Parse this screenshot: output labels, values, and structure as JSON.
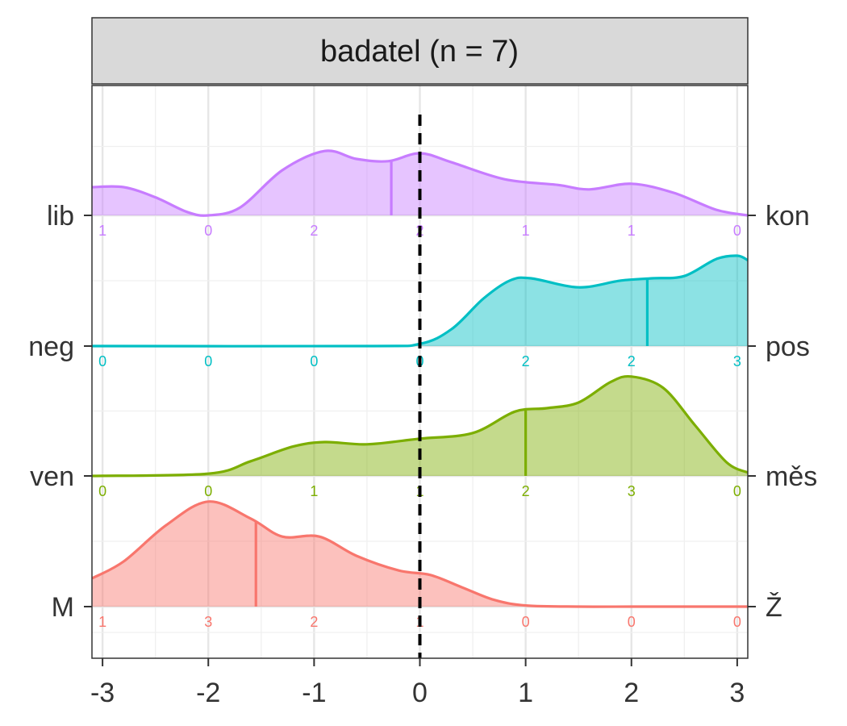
{
  "chart_data": {
    "type": "ridgeline-density",
    "facet_title": "badatel (n = 7)",
    "x_ticks": [
      -3,
      -2,
      -1,
      0,
      1,
      2,
      3
    ],
    "x_tick_labels": [
      "-3",
      "-2",
      "-1",
      "0",
      "1",
      "2",
      "3"
    ],
    "xlim": [
      -3.1,
      3.1
    ],
    "reference_line_x": 0,
    "grid": true,
    "series": [
      {
        "left_label": "M",
        "right_label": "Ž",
        "color": "#F8766D",
        "median": -1.55,
        "counts": [
          1,
          3,
          2,
          1,
          0,
          0,
          0
        ],
        "density": [
          [
            -3.1,
            0.25
          ],
          [
            -2.8,
            0.4
          ],
          [
            -2.4,
            0.72
          ],
          [
            -2.0,
            0.93
          ],
          [
            -1.6,
            0.78
          ],
          [
            -1.3,
            0.62
          ],
          [
            -0.95,
            0.62
          ],
          [
            -0.6,
            0.45
          ],
          [
            -0.2,
            0.32
          ],
          [
            0.1,
            0.28
          ],
          [
            0.4,
            0.17
          ],
          [
            0.7,
            0.06
          ],
          [
            1.0,
            0.01
          ],
          [
            1.5,
            0.0
          ],
          [
            2.0,
            0.0
          ],
          [
            3.1,
            0.0
          ]
        ]
      },
      {
        "left_label": "ven",
        "right_label": "měs",
        "color": "#7CAE00",
        "median": 1.0,
        "counts": [
          0,
          0,
          1,
          1,
          2,
          3,
          0
        ],
        "density": [
          [
            -3.1,
            0.0
          ],
          [
            -2.0,
            0.02
          ],
          [
            -1.6,
            0.13
          ],
          [
            -1.2,
            0.26
          ],
          [
            -0.9,
            0.3
          ],
          [
            -0.5,
            0.28
          ],
          [
            0.0,
            0.33
          ],
          [
            0.5,
            0.38
          ],
          [
            0.9,
            0.57
          ],
          [
            1.2,
            0.6
          ],
          [
            1.5,
            0.65
          ],
          [
            1.8,
            0.83
          ],
          [
            2.0,
            0.88
          ],
          [
            2.3,
            0.78
          ],
          [
            2.6,
            0.45
          ],
          [
            2.9,
            0.12
          ],
          [
            3.1,
            0.03
          ]
        ]
      },
      {
        "left_label": "neg",
        "right_label": "pos",
        "color": "#00BFC4",
        "median": 2.15,
        "counts": [
          0,
          0,
          0,
          0,
          2,
          2,
          3
        ],
        "density": [
          [
            -3.1,
            0.0
          ],
          [
            -0.5,
            0.0
          ],
          [
            0.0,
            0.02
          ],
          [
            0.3,
            0.15
          ],
          [
            0.6,
            0.42
          ],
          [
            0.85,
            0.58
          ],
          [
            1.05,
            0.6
          ],
          [
            1.5,
            0.52
          ],
          [
            1.9,
            0.58
          ],
          [
            2.2,
            0.6
          ],
          [
            2.5,
            0.62
          ],
          [
            2.8,
            0.77
          ],
          [
            3.0,
            0.8
          ],
          [
            3.1,
            0.76
          ]
        ]
      },
      {
        "left_label": "lib",
        "right_label": "kon",
        "color": "#C77CFF",
        "median": -0.27,
        "counts": [
          1,
          0,
          2,
          2,
          1,
          1,
          0
        ],
        "density": [
          [
            -3.1,
            0.25
          ],
          [
            -2.8,
            0.25
          ],
          [
            -2.5,
            0.16
          ],
          [
            -2.2,
            0.03
          ],
          [
            -2.0,
            0.0
          ],
          [
            -1.7,
            0.07
          ],
          [
            -1.3,
            0.4
          ],
          [
            -0.9,
            0.57
          ],
          [
            -0.6,
            0.5
          ],
          [
            -0.3,
            0.48
          ],
          [
            0.0,
            0.55
          ],
          [
            0.3,
            0.47
          ],
          [
            0.8,
            0.32
          ],
          [
            1.3,
            0.27
          ],
          [
            1.6,
            0.23
          ],
          [
            2.0,
            0.28
          ],
          [
            2.4,
            0.2
          ],
          [
            2.8,
            0.05
          ],
          [
            3.1,
            0.0
          ]
        ]
      }
    ]
  }
}
